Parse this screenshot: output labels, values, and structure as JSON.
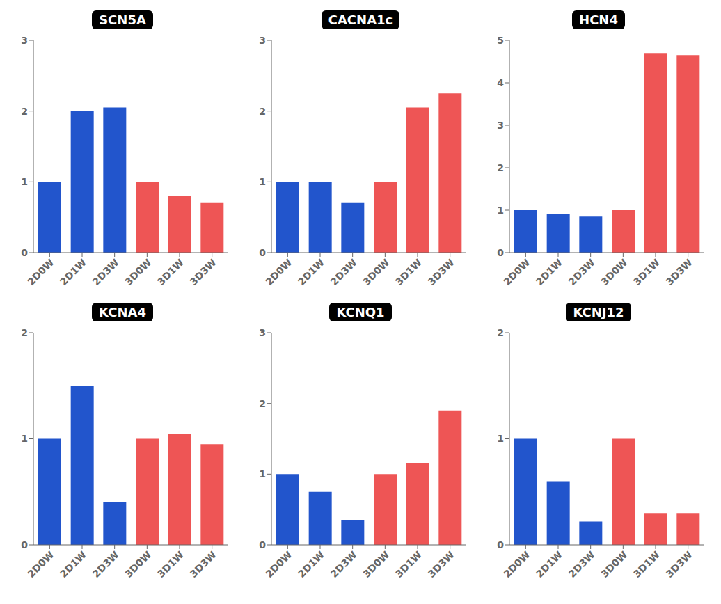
{
  "chart_data": [
    {
      "type": "bar",
      "title": "SCN5A",
      "categories": [
        "2D0W",
        "2D1W",
        "2D3W",
        "3D0W",
        "3D1W",
        "3D3W"
      ],
      "values": [
        1.0,
        2.0,
        2.05,
        1.0,
        0.8,
        0.7
      ],
      "colors": [
        "#2255CC",
        "#2255CC",
        "#2255CC",
        "#EE5555",
        "#EE5555",
        "#EE5555"
      ],
      "ylim": [
        0,
        3
      ],
      "yticks": [
        0,
        1,
        2,
        3
      ]
    },
    {
      "type": "bar",
      "title": "CACNA1c",
      "categories": [
        "2D0W",
        "2D1W",
        "2D3W",
        "3D0W",
        "3D1W",
        "3D3W"
      ],
      "values": [
        1.0,
        1.0,
        0.7,
        1.0,
        2.05,
        2.25
      ],
      "colors": [
        "#2255CC",
        "#2255CC",
        "#2255CC",
        "#EE5555",
        "#EE5555",
        "#EE5555"
      ],
      "ylim": [
        0,
        3
      ],
      "yticks": [
        0,
        1,
        2,
        3
      ]
    },
    {
      "type": "bar",
      "title": "HCN4",
      "categories": [
        "2D0W",
        "2D1W",
        "2D3W",
        "3D0W",
        "3D1W",
        "3D3W"
      ],
      "values": [
        1.0,
        0.9,
        0.85,
        1.0,
        4.7,
        4.65
      ],
      "colors": [
        "#2255CC",
        "#2255CC",
        "#2255CC",
        "#EE5555",
        "#EE5555",
        "#EE5555"
      ],
      "ylim": [
        0,
        5
      ],
      "yticks": [
        0,
        1,
        2,
        3,
        4,
        5
      ]
    },
    {
      "type": "bar",
      "title": "KCNA4",
      "categories": [
        "2D0W",
        "2D1W",
        "2D3W",
        "3D0W",
        "3D1W",
        "3D3W"
      ],
      "values": [
        1.0,
        1.5,
        0.4,
        1.0,
        1.05,
        0.95
      ],
      "colors": [
        "#2255CC",
        "#2255CC",
        "#2255CC",
        "#EE5555",
        "#EE5555",
        "#EE5555"
      ],
      "ylim": [
        0,
        2
      ],
      "yticks": [
        0,
        1,
        2
      ]
    },
    {
      "type": "bar",
      "title": "KCNQ1",
      "categories": [
        "2D0W",
        "2D1W",
        "2D3W",
        "3D0W",
        "3D1W",
        "3D3W"
      ],
      "values": [
        1.0,
        0.75,
        0.35,
        1.0,
        1.15,
        1.9
      ],
      "colors": [
        "#2255CC",
        "#2255CC",
        "#2255CC",
        "#EE5555",
        "#EE5555",
        "#EE5555"
      ],
      "ylim": [
        0,
        3
      ],
      "yticks": [
        0,
        1,
        2,
        3
      ]
    },
    {
      "type": "bar",
      "title": "KCNJ12",
      "categories": [
        "2D0W",
        "2D1W",
        "2D3W",
        "3D0W",
        "3D1W",
        "3D3W"
      ],
      "values": [
        1.0,
        0.6,
        0.22,
        1.0,
        0.3,
        0.3
      ],
      "colors": [
        "#2255CC",
        "#2255CC",
        "#2255CC",
        "#EE5555",
        "#EE5555",
        "#EE5555"
      ],
      "ylim": [
        0,
        2
      ],
      "yticks": [
        0,
        1,
        2
      ]
    }
  ]
}
